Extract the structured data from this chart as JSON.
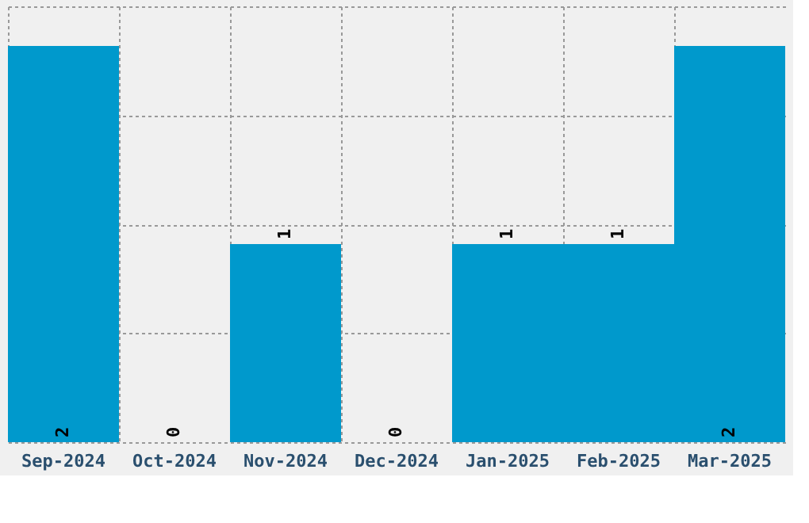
{
  "chart_data": {
    "type": "bar",
    "categories": [
      "Sep-2024",
      "Oct-2024",
      "Nov-2024",
      "Dec-2024",
      "Jan-2025",
      "Feb-2025",
      "Mar-2025"
    ],
    "values": [
      2,
      0,
      1,
      0,
      1,
      1,
      2
    ],
    "color": "#0099cc",
    "data_labels": true,
    "grid": true,
    "tick_labels": "x",
    "ylim": [
      0,
      2.2
    ],
    "yticks": [
      {
        "value": 0,
        "label": null
      },
      {
        "value": 0.55,
        "label": null
      },
      {
        "value": 1.1,
        "label": null
      },
      {
        "value": 1.65,
        "label": null
      },
      {
        "value": 2.2,
        "label": null
      }
    ]
  }
}
